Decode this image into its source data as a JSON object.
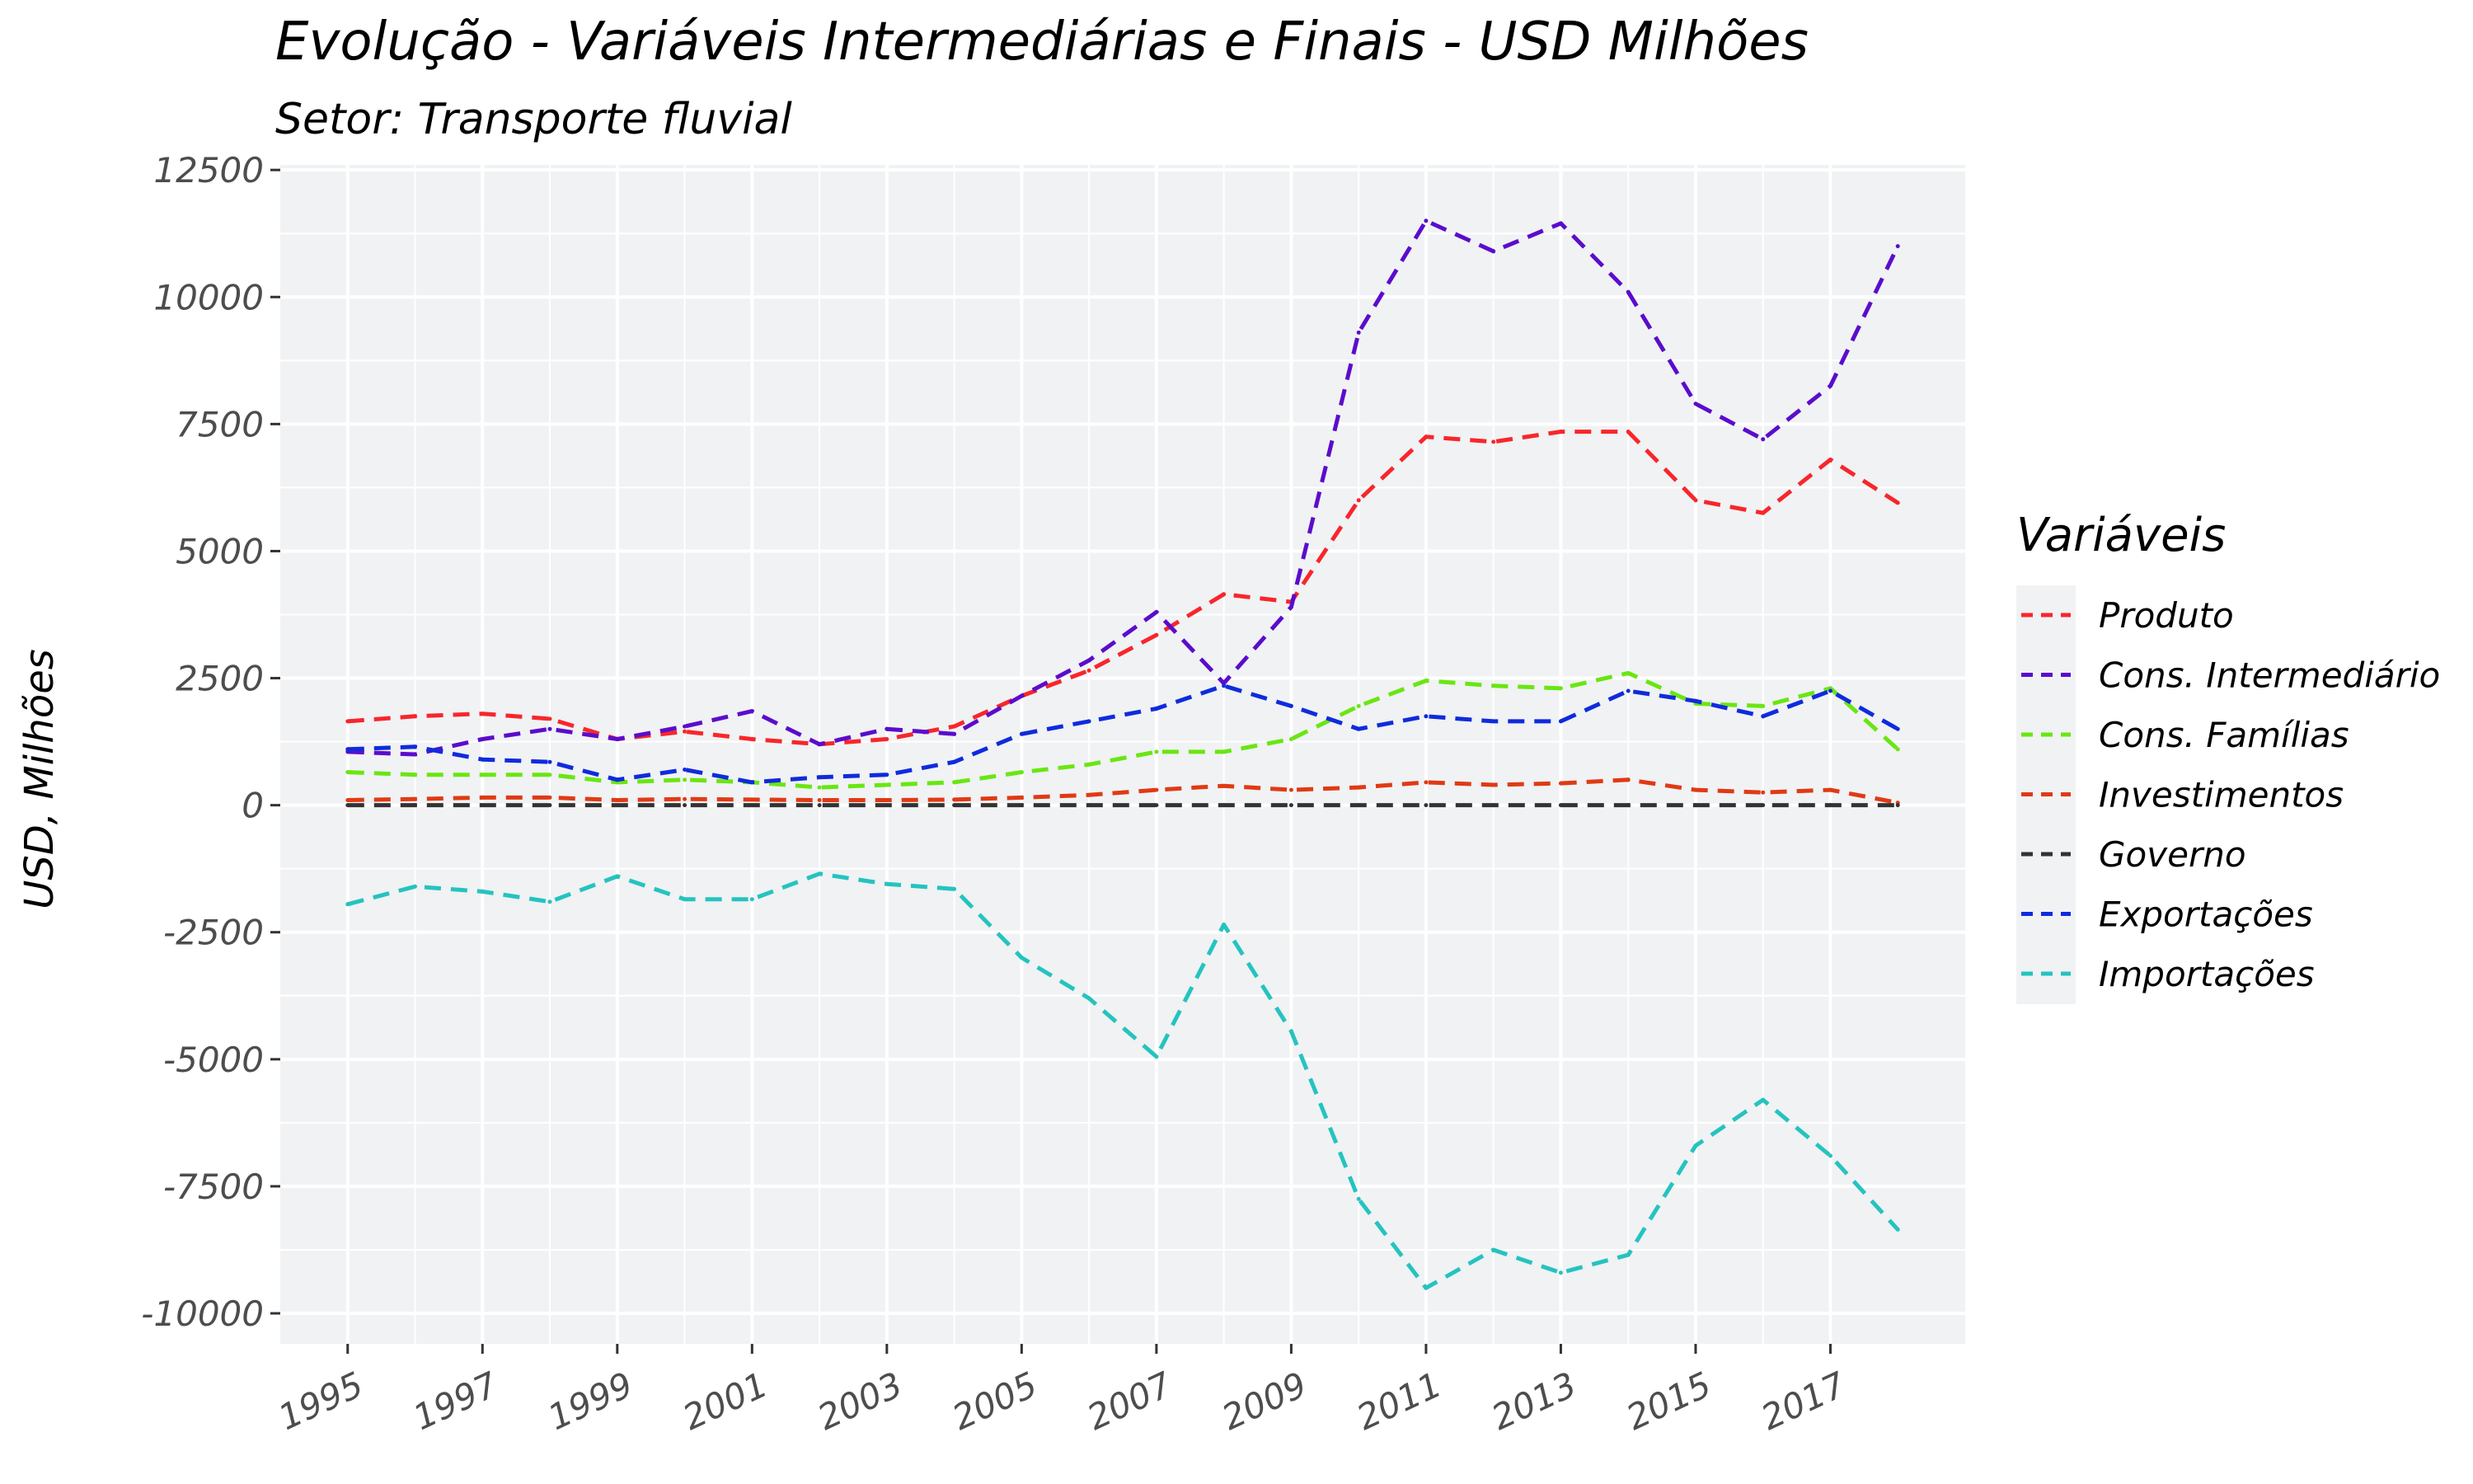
{
  "chart_data": {
    "type": "line",
    "title": "Evolução - Variáveis Intermediárias e Finais - USD Milhões",
    "subtitle": "Setor: Transporte fluvial",
    "xlabel": "",
    "ylabel": "USD, Milhões",
    "legend_title": "Variáveis",
    "legend_position": "right",
    "grid": true,
    "line_style": "dashed",
    "xlim": [
      1994,
      2019
    ],
    "ylim": [
      -10600,
      12600
    ],
    "x_ticks": [
      1995,
      1997,
      1999,
      2001,
      2003,
      2005,
      2007,
      2009,
      2011,
      2013,
      2015,
      2017
    ],
    "y_ticks": [
      12500,
      10000,
      7500,
      5000,
      2500,
      0,
      -2500,
      -5000,
      -7500,
      -10000
    ],
    "x": [
      1995,
      1996,
      1997,
      1998,
      1999,
      2000,
      2001,
      2002,
      2003,
      2004,
      2005,
      2006,
      2007,
      2008,
      2009,
      2010,
      2011,
      2012,
      2013,
      2014,
      2015,
      2016,
      2017,
      2018
    ],
    "series": [
      {
        "name": "Produto",
        "color": "#f8262b",
        "values": [
          1650,
          1750,
          1800,
          1700,
          1300,
          1450,
          1300,
          1200,
          1300,
          1550,
          2150,
          2650,
          3350,
          4150,
          4000,
          6000,
          7250,
          7150,
          7350,
          7350,
          6000,
          5750,
          6800,
          5950
        ]
      },
      {
        "name": "Cons. Intermediário",
        "color": "#5b0ccc",
        "values": [
          1050,
          1000,
          1300,
          1500,
          1300,
          1550,
          1850,
          1200,
          1500,
          1400,
          2150,
          2850,
          3800,
          2400,
          3900,
          9300,
          11500,
          10900,
          11450,
          10100,
          7900,
          7200,
          8250,
          11000
        ]
      },
      {
        "name": "Cons. Famílias",
        "color": "#6ae612",
        "values": [
          650,
          600,
          600,
          600,
          450,
          500,
          450,
          350,
          400,
          450,
          650,
          800,
          1050,
          1050,
          1300,
          1950,
          2450,
          2350,
          2300,
          2600,
          2000,
          1950,
          2300,
          1100
        ]
      },
      {
        "name": "Investimentos",
        "color": "#e03a14",
        "values": [
          100,
          120,
          150,
          150,
          100,
          120,
          110,
          100,
          100,
          110,
          150,
          200,
          300,
          380,
          300,
          350,
          450,
          400,
          430,
          500,
          300,
          250,
          300,
          50
        ]
      },
      {
        "name": "Governo",
        "color": "#333333",
        "values": [
          0,
          0,
          0,
          0,
          0,
          0,
          0,
          0,
          0,
          0,
          0,
          0,
          0,
          0,
          0,
          0,
          0,
          0,
          0,
          0,
          0,
          0,
          0,
          0
        ]
      },
      {
        "name": "Exportações",
        "color": "#0f2bdd",
        "values": [
          1100,
          1150,
          900,
          850,
          500,
          700,
          450,
          550,
          600,
          850,
          1400,
          1650,
          1900,
          2350,
          1950,
          1500,
          1750,
          1650,
          1650,
          2250,
          2050,
          1750,
          2250,
          1500
        ]
      },
      {
        "name": "Importações",
        "color": "#25c3bf",
        "values": [
          -1950,
          -1600,
          -1700,
          -1900,
          -1400,
          -1850,
          -1850,
          -1350,
          -1550,
          -1650,
          -3000,
          -3800,
          -4950,
          -2350,
          -4450,
          -7750,
          -9500,
          -8750,
          -9200,
          -8850,
          -6700,
          -5800,
          -6900,
          -8350
        ]
      }
    ]
  }
}
